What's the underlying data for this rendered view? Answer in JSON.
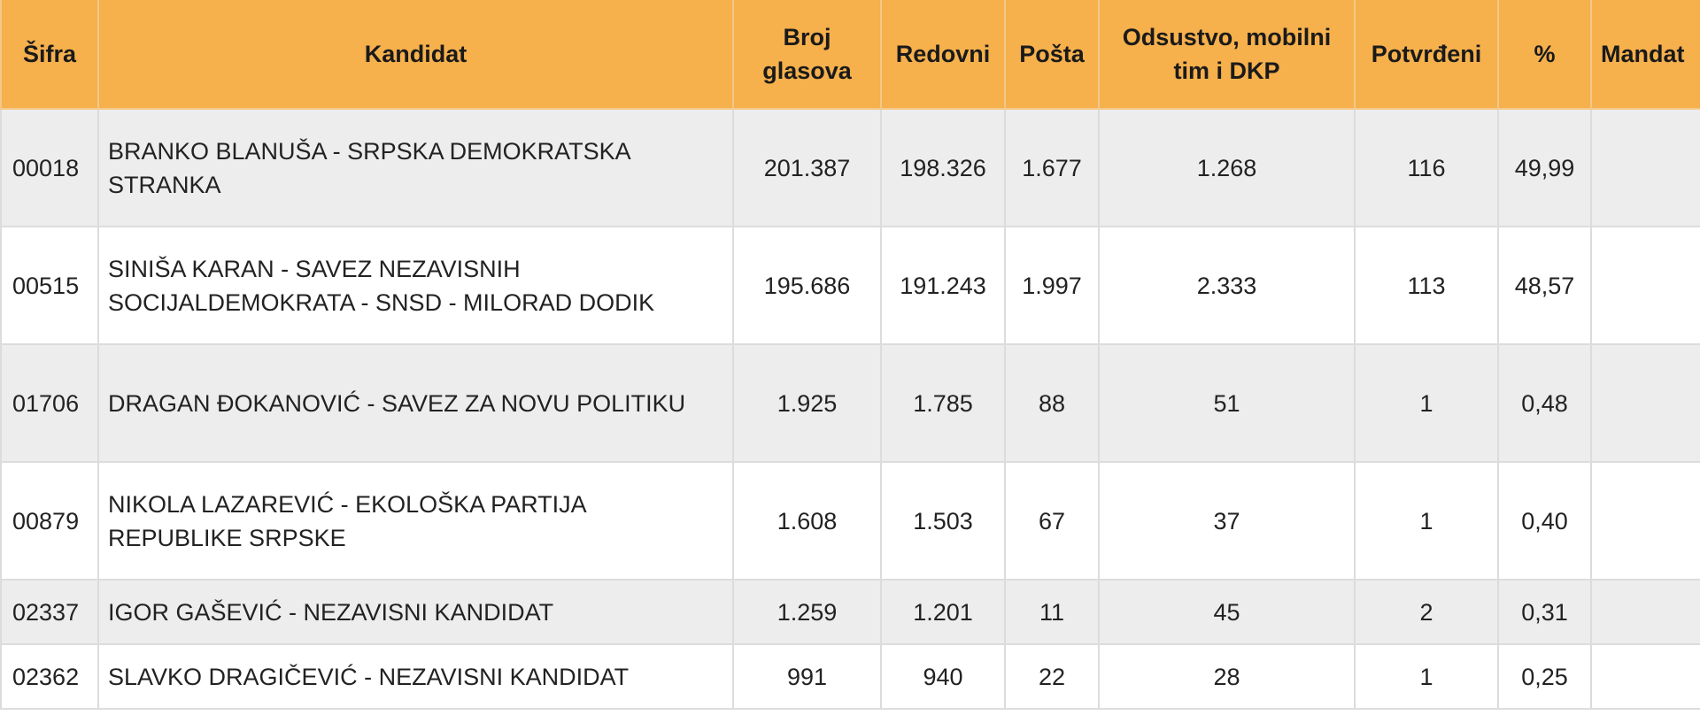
{
  "headers": {
    "code": "Šifra",
    "candidate": "Kandidat",
    "votes": "Broj glasova",
    "regular": "Redovni",
    "post": "Pošta",
    "absentee": "Odsustvo, mobilni tim i DKP",
    "confirmed": "Potvrđeni",
    "percent": "%",
    "mandate": "Mandat"
  },
  "rows": [
    {
      "code": "00018",
      "candidate": "BRANKO BLANUŠA - SRPSKA DEMOKRATSKA STRANKA",
      "votes": "201.387",
      "regular": "198.326",
      "post": "1.677",
      "absentee": "1.268",
      "confirmed": "116",
      "percent": "49,99",
      "mandate": ""
    },
    {
      "code": "00515",
      "candidate": "SINIŠA KARAN - SAVEZ NEZAVISNIH SOCIJALDEMOKRATA - SNSD - MILORAD DODIK",
      "votes": "195.686",
      "regular": "191.243",
      "post": "1.997",
      "absentee": "2.333",
      "confirmed": "113",
      "percent": "48,57",
      "mandate": ""
    },
    {
      "code": "01706",
      "candidate": "DRAGAN ĐOKANOVIĆ - SAVEZ ZA NOVU POLITIKU",
      "votes": "1.925",
      "regular": "1.785",
      "post": "88",
      "absentee": "51",
      "confirmed": "1",
      "percent": "0,48",
      "mandate": ""
    },
    {
      "code": "00879",
      "candidate": "NIKOLA LAZAREVIĆ - EKOLOŠKA PARTIJA REPUBLIKE SRPSKE",
      "votes": "1.608",
      "regular": "1.503",
      "post": "67",
      "absentee": "37",
      "confirmed": "1",
      "percent": "0,40",
      "mandate": ""
    },
    {
      "code": "02337",
      "candidate": "IGOR GAŠEVIĆ - NEZAVISNI KANDIDAT",
      "votes": "1.259",
      "regular": "1.201",
      "post": "11",
      "absentee": "45",
      "confirmed": "2",
      "percent": "0,31",
      "mandate": ""
    },
    {
      "code": "02362",
      "candidate": "SLAVKO DRAGIČEVIĆ - NEZAVISNI KANDIDAT",
      "votes": "991",
      "regular": "940",
      "post": "22",
      "absentee": "28",
      "confirmed": "1",
      "percent": "0,25",
      "mandate": ""
    }
  ],
  "colors": {
    "header_bg": "#f6b04c",
    "odd_row_bg": "#ededed"
  }
}
